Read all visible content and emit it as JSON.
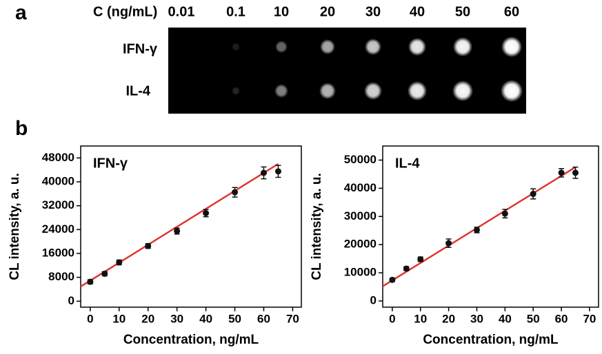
{
  "panel_a": {
    "label": "a",
    "header": "C (ng/mL)",
    "concentrations": [
      "0.01",
      "0.1",
      "10",
      "20",
      "30",
      "40",
      "50",
      "60"
    ],
    "rows": [
      "IFN-γ",
      "IL-4"
    ]
  },
  "panel_b": {
    "label": "b"
  },
  "chart_data": [
    {
      "type": "scatter",
      "title": "IFN-γ",
      "x_label": "Concentration, ng/mL",
      "y_label": "CL intensity, a. u.",
      "xlim": [
        -3.3,
        73
      ],
      "ylim": [
        -2000,
        52000
      ],
      "xticks": [
        0,
        10,
        20,
        30,
        40,
        50,
        60,
        70
      ],
      "yticks": [
        0,
        8000,
        16000,
        24000,
        32000,
        40000,
        48000
      ],
      "series": [
        {
          "color": "#111111",
          "x": [
            0,
            5,
            10,
            20,
            30,
            40,
            50,
            60,
            65
          ],
          "values": [
            6500,
            9200,
            13000,
            18500,
            23500,
            29500,
            36500,
            43000,
            43500
          ],
          "errors": [
            700,
            700,
            800,
            800,
            1000,
            1200,
            1600,
            2000,
            2000
          ]
        }
      ],
      "fit_line": {
        "color": "#e0342f",
        "x": [
          -3.3,
          65
        ],
        "values": [
          4900,
          46000
        ]
      }
    },
    {
      "type": "scatter",
      "title": "IL-4",
      "x_label": "Concentration, ng/mL",
      "y_label": "CL intensity, a. u.",
      "xlim": [
        -3.4,
        73.2
      ],
      "ylim": [
        -2200,
        55000
      ],
      "xticks": [
        0,
        10,
        20,
        30,
        40,
        50,
        60,
        70
      ],
      "yticks": [
        0,
        10000,
        20000,
        30000,
        40000,
        50000
      ],
      "series": [
        {
          "color": "#111111",
          "x": [
            0,
            5,
            10,
            20,
            30,
            40,
            50,
            60,
            65
          ],
          "values": [
            7500,
            11500,
            14800,
            20500,
            25200,
            31000,
            38000,
            45500,
            45500
          ],
          "errors": [
            600,
            700,
            800,
            1500,
            1000,
            1500,
            1800,
            1500,
            2000
          ]
        }
      ],
      "fit_line": {
        "color": "#e0342f",
        "x": [
          -3.4,
          65
        ],
        "values": [
          5200,
          47500
        ]
      }
    }
  ]
}
